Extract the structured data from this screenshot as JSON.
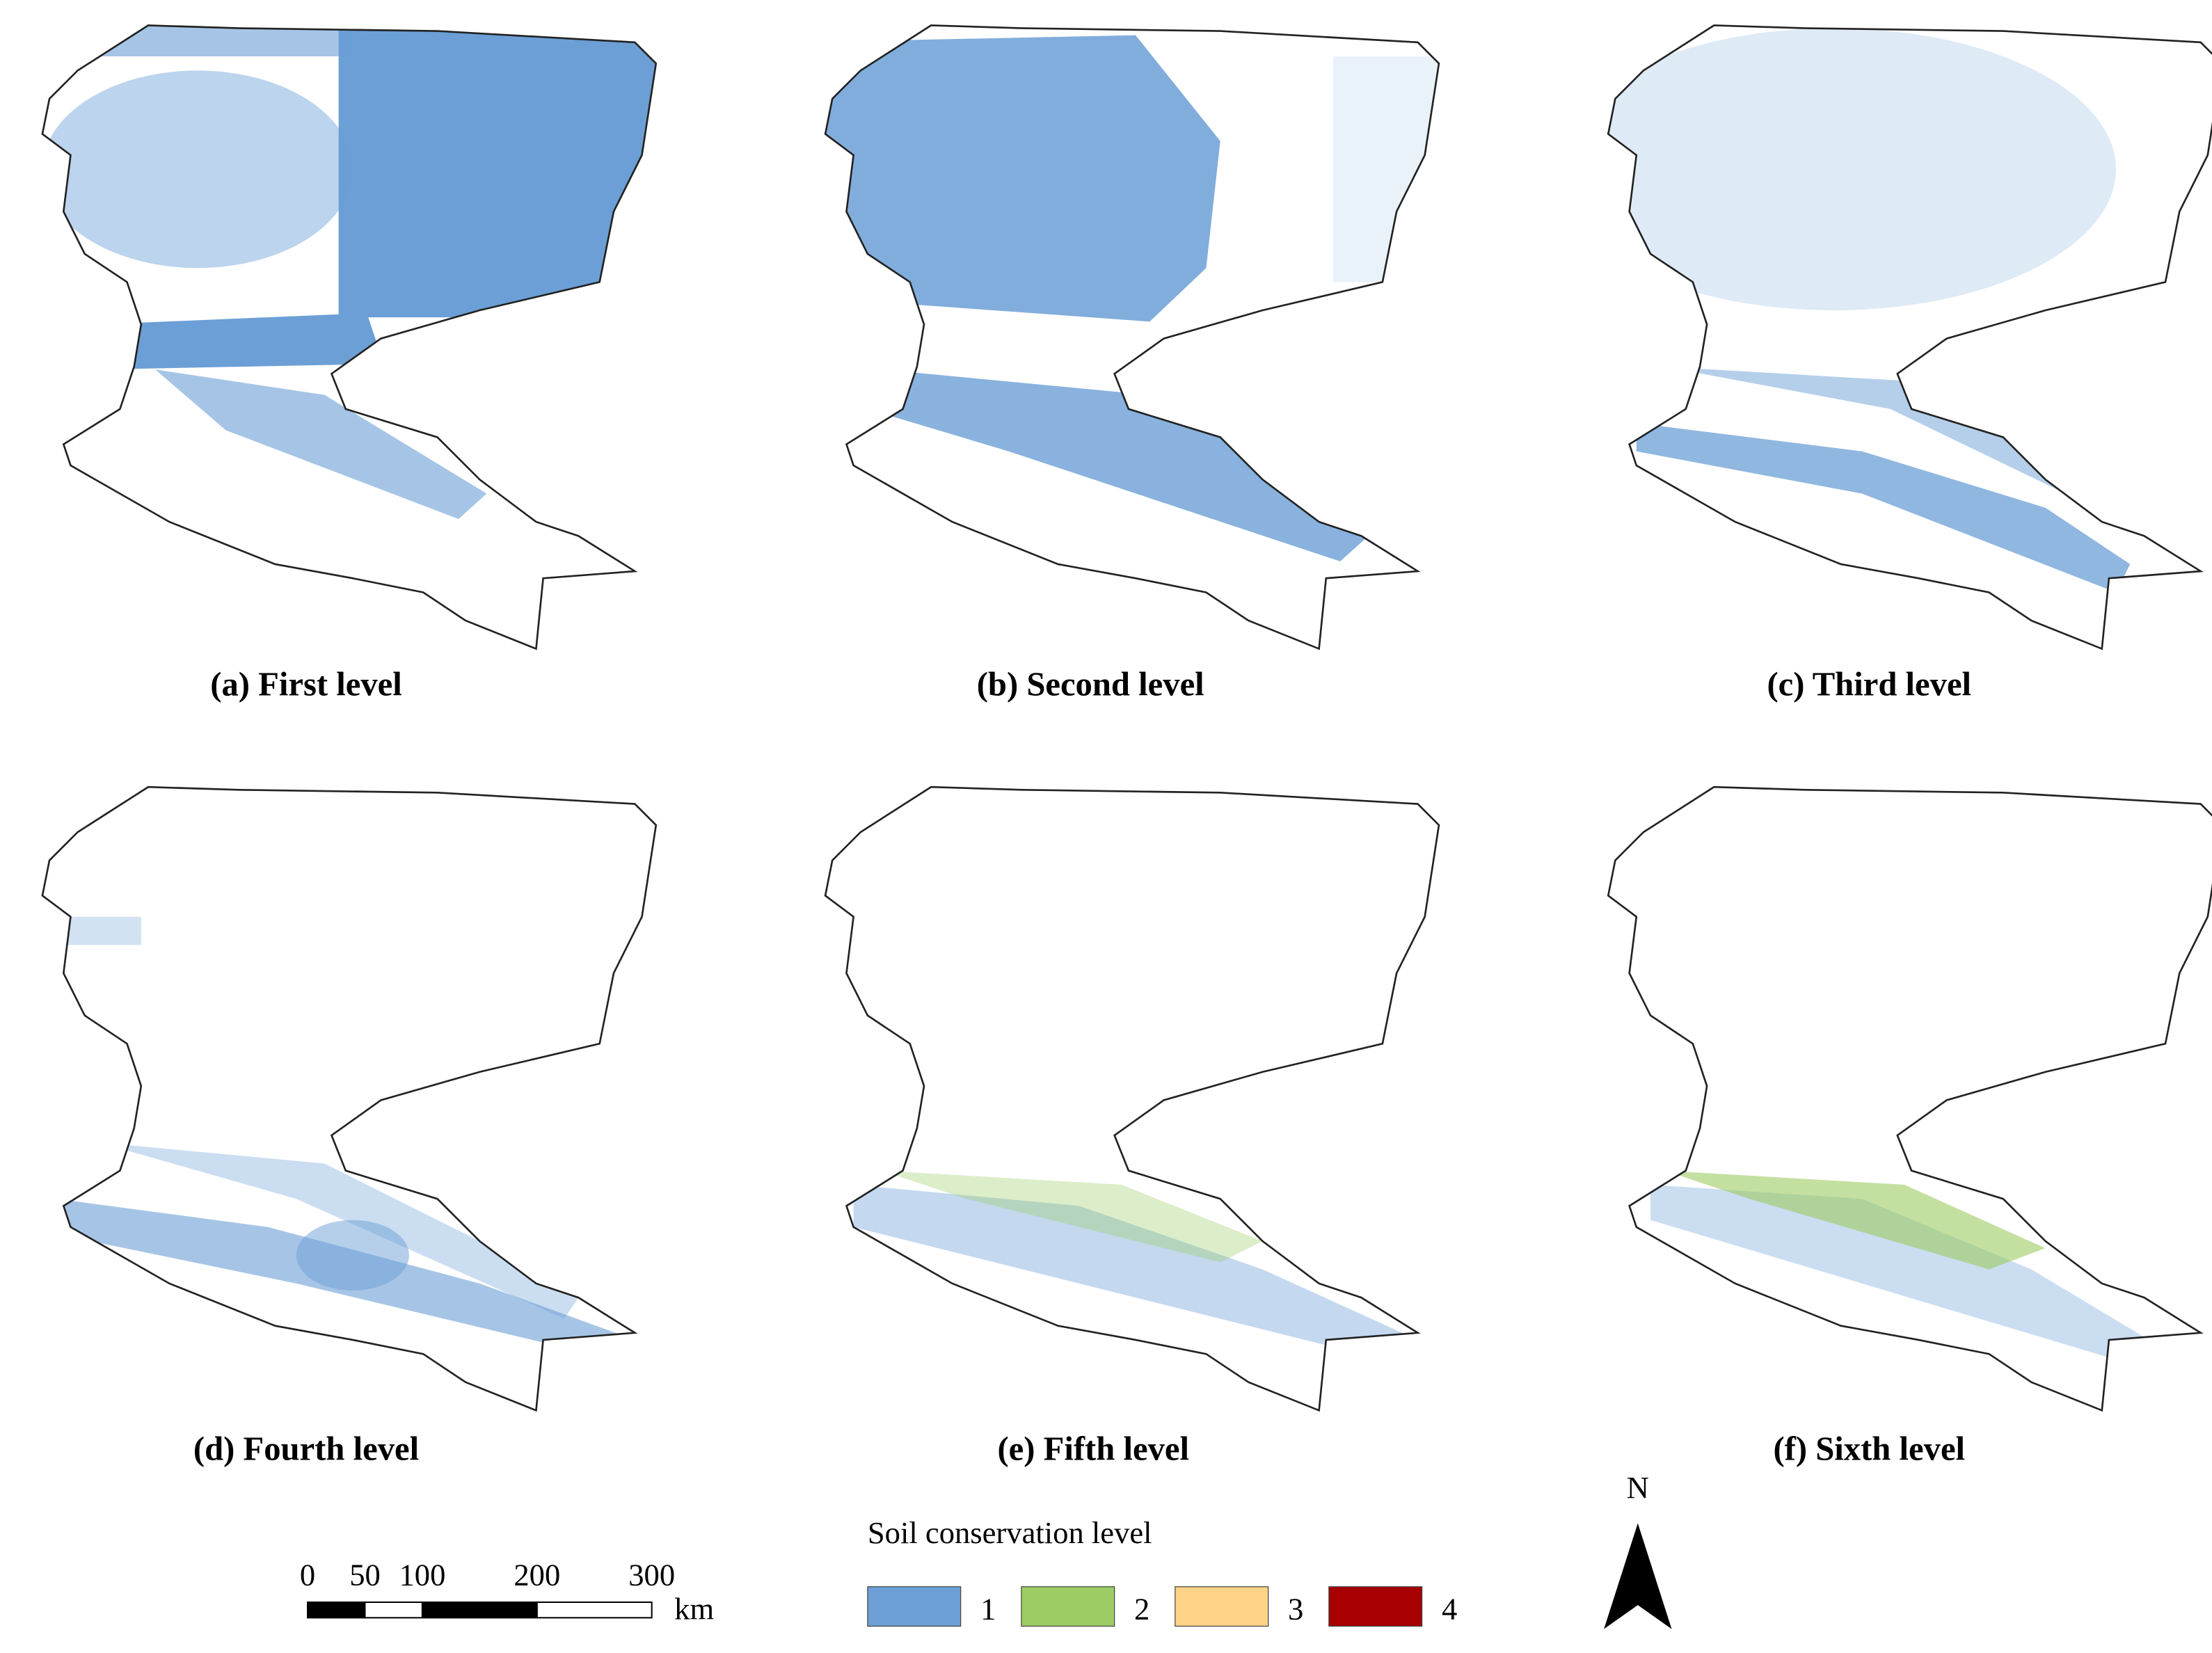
{
  "panels": [
    {
      "label": "(a) First level"
    },
    {
      "label": "(b) Second level"
    },
    {
      "label": "(c) Third level"
    },
    {
      "label": "(d) Fourth level"
    },
    {
      "label": "(e) Fifth level"
    },
    {
      "label": "(f) Sixth level"
    }
  ],
  "legend": {
    "title": "Soil conservation level",
    "items": [
      {
        "label": "1",
        "color": "#6b9fd6"
      },
      {
        "label": "2",
        "color": "#9ccc63"
      },
      {
        "label": "3",
        "color": "#fdd385"
      },
      {
        "label": "4",
        "color": "#a80000"
      }
    ]
  },
  "scale_bar": {
    "ticks": [
      0,
      50,
      100,
      200,
      300
    ],
    "unit": "km"
  },
  "north_arrow": {
    "label": "N"
  }
}
